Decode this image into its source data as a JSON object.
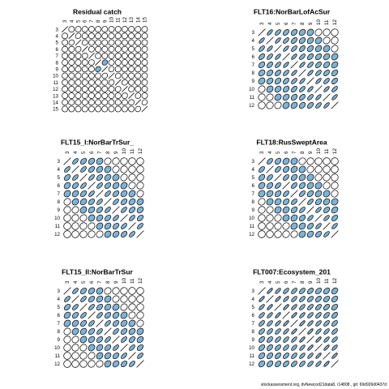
{
  "footer": "stockassessment.org, dvNewcod21data8, r14808 , git: 69d926d0437d",
  "colors": {
    "fill": "#7fb3d5",
    "empty": "#ffffff",
    "stroke": "#000000"
  },
  "chart_data": [
    {
      "type": "correlation-matrix",
      "title": "Residual catch",
      "ages": [
        "3",
        "4",
        "5",
        "6",
        "7",
        "8",
        "9",
        "10",
        "11",
        "12",
        "13",
        "14",
        "15"
      ],
      "correlations": [
        [
          1,
          0.05,
          0.05,
          0.05,
          0.05,
          0.05,
          0.05,
          0.05,
          0.05,
          0.05,
          0.05,
          0.05,
          0.05
        ],
        [
          0.05,
          1,
          0.25,
          0.05,
          0.05,
          0.05,
          0.05,
          0.05,
          0.05,
          0.05,
          0.05,
          0.05,
          0.05
        ],
        [
          0.05,
          0.25,
          1,
          0.15,
          0.05,
          0.05,
          0.05,
          0.05,
          0.05,
          0.05,
          0.05,
          0.05,
          0.05
        ],
        [
          0.05,
          0.05,
          0.15,
          1,
          0.1,
          0.05,
          0.05,
          0.05,
          0.05,
          0.05,
          0.05,
          0.05,
          0.05
        ],
        [
          0.05,
          0.05,
          0.05,
          0.1,
          1,
          0.1,
          0.05,
          0.05,
          0.05,
          0.05,
          0.05,
          0.05,
          0.05
        ],
        [
          0.05,
          0.05,
          0.05,
          0.05,
          0.1,
          1,
          0.3,
          0.05,
          0.05,
          0.05,
          0.05,
          0.05,
          0.05
        ],
        [
          0.05,
          0.05,
          0.05,
          0.05,
          0.05,
          0.3,
          1,
          0.25,
          0.05,
          0.05,
          0.05,
          0.05,
          0.05
        ],
        [
          0.05,
          0.05,
          0.05,
          0.05,
          0.05,
          0.05,
          0.25,
          1,
          0.2,
          0.05,
          0.05,
          0.05,
          0.05
        ],
        [
          0.05,
          0.05,
          0.05,
          0.05,
          0.05,
          0.05,
          0.05,
          0.2,
          1,
          0.15,
          0.05,
          0.05,
          0.05
        ],
        [
          0.05,
          0.05,
          0.05,
          0.05,
          0.05,
          0.05,
          0.05,
          0.05,
          0.15,
          1,
          0.15,
          0.05,
          0.05
        ],
        [
          0.05,
          0.05,
          0.05,
          0.05,
          0.05,
          0.05,
          0.05,
          0.05,
          0.05,
          0.15,
          1,
          0.2,
          0.05
        ],
        [
          0.05,
          0.05,
          0.05,
          0.05,
          0.05,
          0.05,
          0.05,
          0.05,
          0.05,
          0.05,
          0.2,
          1,
          0.25
        ],
        [
          0.05,
          0.05,
          0.05,
          0.05,
          0.05,
          0.05,
          0.05,
          0.05,
          0.05,
          0.05,
          0.05,
          0.25,
          1
        ]
      ]
    },
    {
      "type": "correlation-matrix",
      "title": "FLT16:NorBarLofAcSur",
      "ages": [
        "3",
        "4",
        "5",
        "6",
        "7",
        "8",
        "9",
        "10",
        "11",
        "12"
      ],
      "correlations": [
        [
          1,
          0.85,
          0.75,
          0.65,
          0.55,
          0.45,
          0.35,
          0.25,
          0.15,
          0.1
        ],
        [
          0.85,
          1,
          0.85,
          0.75,
          0.65,
          0.55,
          0.45,
          0.35,
          0.25,
          0.15
        ],
        [
          0.75,
          0.85,
          1,
          0.85,
          0.75,
          0.65,
          0.55,
          0.45,
          0.35,
          0.25
        ],
        [
          0.65,
          0.75,
          0.85,
          1,
          0.85,
          0.75,
          0.65,
          0.55,
          0.45,
          0.35
        ],
        [
          0.55,
          0.65,
          0.75,
          0.85,
          1,
          0.85,
          0.75,
          0.65,
          0.55,
          0.45
        ],
        [
          0.45,
          0.55,
          0.65,
          0.75,
          0.85,
          1,
          0.85,
          0.75,
          0.65,
          0.55
        ],
        [
          0.35,
          0.45,
          0.55,
          0.65,
          0.75,
          0.85,
          1,
          0.85,
          0.75,
          0.65
        ],
        [
          0.25,
          0.35,
          0.45,
          0.55,
          0.65,
          0.75,
          0.85,
          1,
          0.85,
          0.75
        ],
        [
          0.15,
          0.25,
          0.35,
          0.45,
          0.55,
          0.65,
          0.75,
          0.85,
          1,
          0.85
        ],
        [
          0.1,
          0.15,
          0.25,
          0.35,
          0.45,
          0.55,
          0.65,
          0.75,
          0.85,
          1
        ]
      ]
    },
    {
      "type": "correlation-matrix",
      "title": "FLT15_I:NorBarTrSur_",
      "ages": [
        "3",
        "4",
        "5",
        "6",
        "7",
        "8",
        "9",
        "10",
        "11",
        "12"
      ],
      "correlations": [
        [
          1,
          0.75,
          0.6,
          0.45,
          0.35,
          0.25,
          0.15,
          0.1,
          0.05,
          0.05
        ],
        [
          0.75,
          1,
          0.75,
          0.6,
          0.45,
          0.35,
          0.25,
          0.15,
          0.1,
          0.05
        ],
        [
          0.6,
          0.75,
          1,
          0.75,
          0.6,
          0.45,
          0.35,
          0.25,
          0.15,
          0.1
        ],
        [
          0.45,
          0.6,
          0.75,
          1,
          0.75,
          0.6,
          0.45,
          0.35,
          0.25,
          0.15
        ],
        [
          0.35,
          0.45,
          0.6,
          0.75,
          1,
          0.75,
          0.6,
          0.45,
          0.35,
          0.25
        ],
        [
          0.25,
          0.35,
          0.45,
          0.6,
          0.75,
          1,
          0.75,
          0.6,
          0.45,
          0.35
        ],
        [
          0.15,
          0.25,
          0.35,
          0.45,
          0.6,
          0.75,
          1,
          0.75,
          0.6,
          0.45
        ],
        [
          0.1,
          0.15,
          0.25,
          0.35,
          0.45,
          0.6,
          0.75,
          1,
          0.75,
          0.6
        ],
        [
          0.05,
          0.1,
          0.15,
          0.25,
          0.35,
          0.45,
          0.6,
          0.75,
          1,
          0.75
        ],
        [
          0.05,
          0.05,
          0.1,
          0.15,
          0.25,
          0.35,
          0.45,
          0.6,
          0.75,
          1
        ]
      ]
    },
    {
      "type": "correlation-matrix",
      "title": "FLT18:RusSweptArea",
      "ages": [
        "3",
        "4",
        "5",
        "6",
        "7",
        "8",
        "9",
        "10",
        "11",
        "12"
      ],
      "correlations": [
        [
          1,
          0.7,
          0.55,
          0.4,
          0.3,
          0.2,
          0.15,
          0.1,
          0.05,
          0.05
        ],
        [
          0.7,
          1,
          0.7,
          0.55,
          0.4,
          0.3,
          0.2,
          0.15,
          0.1,
          0.05
        ],
        [
          0.55,
          0.7,
          1,
          0.7,
          0.55,
          0.4,
          0.3,
          0.2,
          0.15,
          0.1
        ],
        [
          0.4,
          0.55,
          0.7,
          1,
          0.7,
          0.55,
          0.4,
          0.3,
          0.2,
          0.15
        ],
        [
          0.3,
          0.4,
          0.55,
          0.7,
          1,
          0.7,
          0.55,
          0.4,
          0.3,
          0.2
        ],
        [
          0.2,
          0.3,
          0.4,
          0.55,
          0.7,
          1,
          0.75,
          0.55,
          0.4,
          0.3
        ],
        [
          0.15,
          0.2,
          0.3,
          0.4,
          0.55,
          0.75,
          1,
          0.8,
          0.6,
          0.45
        ],
        [
          0.1,
          0.15,
          0.2,
          0.3,
          0.4,
          0.55,
          0.8,
          1,
          0.8,
          0.6
        ],
        [
          0.05,
          0.1,
          0.15,
          0.2,
          0.3,
          0.4,
          0.6,
          0.8,
          1,
          0.8
        ],
        [
          0.05,
          0.05,
          0.1,
          0.15,
          0.2,
          0.3,
          0.45,
          0.6,
          0.8,
          1
        ]
      ]
    },
    {
      "type": "correlation-matrix",
      "title": "FLT15_II:NorBarTrSur",
      "ages": [
        "3",
        "4",
        "5",
        "6",
        "7",
        "8",
        "9",
        "10",
        "11",
        "12"
      ],
      "correlations": [
        [
          1,
          0.75,
          0.6,
          0.45,
          0.35,
          0.25,
          0.15,
          0.1,
          0.05,
          0.05
        ],
        [
          0.75,
          1,
          0.75,
          0.6,
          0.45,
          0.35,
          0.25,
          0.15,
          0.1,
          0.05
        ],
        [
          0.6,
          0.75,
          1,
          0.75,
          0.6,
          0.45,
          0.35,
          0.25,
          0.15,
          0.1
        ],
        [
          0.45,
          0.6,
          0.75,
          1,
          0.75,
          0.6,
          0.45,
          0.35,
          0.25,
          0.15
        ],
        [
          0.35,
          0.45,
          0.6,
          0.75,
          1,
          0.75,
          0.6,
          0.45,
          0.35,
          0.25
        ],
        [
          0.25,
          0.35,
          0.45,
          0.6,
          0.75,
          1,
          0.75,
          0.6,
          0.45,
          0.35
        ],
        [
          0.15,
          0.25,
          0.35,
          0.45,
          0.6,
          0.75,
          1,
          0.75,
          0.6,
          0.45
        ],
        [
          0.1,
          0.15,
          0.25,
          0.35,
          0.45,
          0.6,
          0.75,
          1,
          0.75,
          0.6
        ],
        [
          0.05,
          0.1,
          0.15,
          0.25,
          0.35,
          0.45,
          0.6,
          0.75,
          1,
          0.75
        ],
        [
          0.05,
          0.05,
          0.1,
          0.15,
          0.25,
          0.35,
          0.45,
          0.6,
          0.75,
          1
        ]
      ]
    },
    {
      "type": "correlation-matrix",
      "title": "FLT007:Ecosystem_201",
      "ages": [
        "3",
        "4",
        "5",
        "6",
        "7",
        "8",
        "9",
        "10",
        "11",
        "12"
      ],
      "correlations": [
        [
          1,
          0.9,
          0.85,
          0.8,
          0.75,
          0.7,
          0.65,
          0.6,
          0.55,
          0.5
        ],
        [
          0.9,
          1,
          0.9,
          0.85,
          0.8,
          0.75,
          0.7,
          0.65,
          0.6,
          0.55
        ],
        [
          0.85,
          0.9,
          1,
          0.9,
          0.85,
          0.8,
          0.75,
          0.7,
          0.65,
          0.6
        ],
        [
          0.8,
          0.85,
          0.9,
          1,
          0.9,
          0.85,
          0.8,
          0.75,
          0.7,
          0.65
        ],
        [
          0.75,
          0.8,
          0.85,
          0.9,
          1,
          0.9,
          0.85,
          0.8,
          0.75,
          0.7
        ],
        [
          0.7,
          0.75,
          0.8,
          0.85,
          0.9,
          1,
          0.9,
          0.85,
          0.8,
          0.75
        ],
        [
          0.65,
          0.7,
          0.75,
          0.8,
          0.85,
          0.9,
          1,
          0.9,
          0.85,
          0.8
        ],
        [
          0.6,
          0.65,
          0.7,
          0.75,
          0.8,
          0.85,
          0.9,
          1,
          0.9,
          0.85
        ],
        [
          0.55,
          0.6,
          0.65,
          0.7,
          0.75,
          0.8,
          0.85,
          0.9,
          1,
          0.9
        ],
        [
          0.5,
          0.55,
          0.6,
          0.65,
          0.7,
          0.75,
          0.8,
          0.85,
          0.9,
          1
        ]
      ]
    }
  ]
}
